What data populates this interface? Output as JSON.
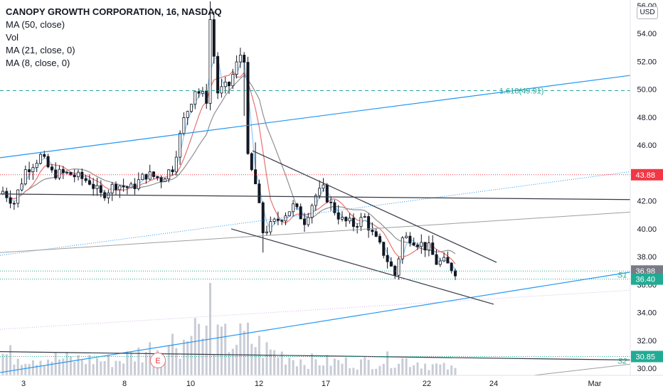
{
  "legend": {
    "title": "CANOPY GROWTH CORPORATION, 16, NASDAQ",
    "ma50": "MA (50, close)",
    "vol": "Vol",
    "ma21": "MA (21, close, 0)",
    "ma8": "MA (8, close, 0)"
  },
  "currency": "USD",
  "earnings_marker": "E",
  "colors": {
    "candle": "#131722",
    "ma50": "#8f8f8f",
    "ma21": "#e57373",
    "ma8": "#90caf9",
    "trend_blue": "#2196f3",
    "trend_dark": "#363a45",
    "trend_gray": "#9e9e9e",
    "resistance_red": "#f23645",
    "fib_green": "#26a69a",
    "support_label": "#22ab94",
    "price_dark": "#787b86",
    "volume": "#c8ccd6"
  },
  "chart_data": {
    "type": "candlestick",
    "title": "CANOPY GROWTH CORPORATION, 16, NASDAQ",
    "ylim": [
      29.5,
      56.2
    ],
    "y_ticks": [
      30.0,
      32.0,
      34.0,
      36.0,
      38.0,
      40.0,
      42.0,
      44.0,
      46.0,
      48.0,
      50.0,
      52.0,
      54.0,
      56.0
    ],
    "x_ticks": [
      "3",
      "8",
      "10",
      "12",
      "17",
      "22",
      "24",
      "Mar"
    ],
    "fib_label": "1.618(49.91)",
    "fib_value": 49.91,
    "resistance_value": 43.88,
    "resistance_label": "43.88",
    "last_price": 36.98,
    "last_price_label": "36.98",
    "s1_value": 36.4,
    "s1_value_label": "36.40",
    "s1_label": "S1",
    "s2_value": 30.85,
    "s2_value_label": "30.85",
    "s2_label": "S2",
    "anchors": [
      [
        0,
        42.7
      ],
      [
        3,
        41.9
      ],
      [
        6,
        44.2
      ],
      [
        10,
        45.2
      ],
      [
        13,
        44.0
      ],
      [
        18,
        43.9
      ],
      [
        23,
        43.4
      ],
      [
        26,
        42.4
      ],
      [
        30,
        43.2
      ],
      [
        34,
        42.9
      ],
      [
        38,
        43.9
      ],
      [
        42,
        43.6
      ],
      [
        45,
        44.4
      ],
      [
        48,
        47.8
      ],
      [
        51,
        50.0
      ],
      [
        54,
        49.3
      ],
      [
        55,
        55.0
      ],
      [
        57,
        49.8
      ],
      [
        60,
        50.3
      ],
      [
        63,
        52.5
      ],
      [
        64,
        52.3
      ],
      [
        65,
        45.0
      ],
      [
        67,
        43.2
      ],
      [
        69,
        39.8
      ],
      [
        71,
        40.2
      ],
      [
        74,
        40.9
      ],
      [
        77,
        41.6
      ],
      [
        80,
        40.6
      ],
      [
        83,
        42.4
      ],
      [
        85,
        42.8
      ],
      [
        87,
        41.7
      ],
      [
        90,
        40.6
      ],
      [
        93,
        40.3
      ],
      [
        96,
        40.8
      ],
      [
        98,
        39.6
      ],
      [
        101,
        38.3
      ],
      [
        104,
        36.7
      ],
      [
        106,
        39.3
      ],
      [
        108,
        39.4
      ],
      [
        111,
        38.9
      ],
      [
        113,
        38.6
      ],
      [
        115,
        37.6
      ],
      [
        117,
        37.6
      ],
      [
        119,
        37.2
      ],
      [
        120,
        36.98
      ]
    ],
    "volume_profile": [
      [
        0,
        0.5
      ],
      [
        15,
        0.4
      ],
      [
        30,
        0.35
      ],
      [
        45,
        0.8
      ],
      [
        55,
        1.0
      ],
      [
        60,
        0.8
      ],
      [
        65,
        0.9
      ],
      [
        70,
        0.6
      ],
      [
        80,
        0.35
      ],
      [
        95,
        0.3
      ],
      [
        105,
        0.4
      ],
      [
        120,
        0.15
      ]
    ],
    "series": [
      {
        "name": "MA (50, close)"
      },
      {
        "name": "MA (21, close, 0)"
      },
      {
        "name": "MA (8, close, 0)"
      },
      {
        "name": "Vol"
      }
    ]
  }
}
